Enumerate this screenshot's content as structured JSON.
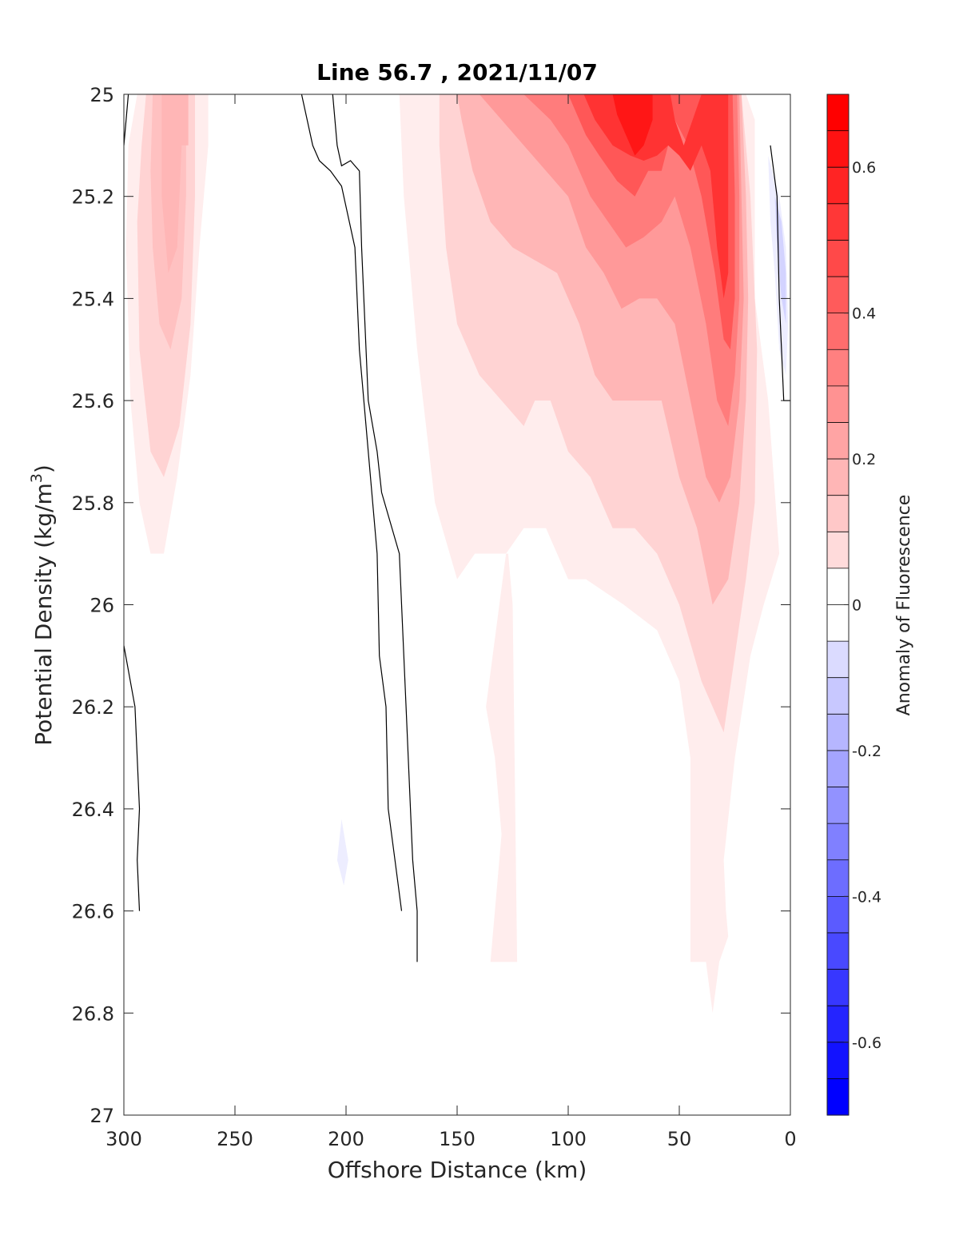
{
  "chart_data": {
    "type": "heatmap",
    "subtype": "filled-contour",
    "title": "Line 56.7 , 2021/11/07",
    "xlabel": "Offshore Distance (km)",
    "ylabel_main": "Potential Density (kg/m",
    "ylabel_sup": "3",
    "ylabel_close": ")",
    "colorbar_label": "Anomaly of Fluorescence",
    "xlim": [
      300,
      0
    ],
    "x_reversed": true,
    "ylim": [
      25,
      27
    ],
    "y_reversed": true,
    "x_ticks": [
      300,
      250,
      200,
      150,
      100,
      50,
      0
    ],
    "y_ticks": [
      "25",
      "25.2",
      "25.4",
      "25.6",
      "25.8",
      "26",
      "26.2",
      "26.4",
      "26.6",
      "26.8",
      "27"
    ],
    "y_tick_values": [
      25,
      25.2,
      25.4,
      25.6,
      25.8,
      26,
      26.2,
      26.4,
      26.6,
      26.8,
      27
    ],
    "colorbar_ticks": [
      "0.6",
      "0.4",
      "0.2",
      "0",
      "-0.2",
      "-0.4",
      "-0.6"
    ],
    "colorbar_tick_values": [
      0.6,
      0.4,
      0.2,
      0,
      -0.2,
      -0.4,
      -0.6
    ],
    "colorbar_range": [
      -0.7,
      0.7
    ],
    "colorbar_levels": 28,
    "colors": {
      "positive": "#ff0000",
      "negative": "#0000ff",
      "zero": "#ffffff"
    },
    "regions": [
      {
        "name": "offshore-positive-lobe",
        "level": 0.05,
        "points": [
          [
            294,
            25
          ],
          [
            282,
            25
          ],
          [
            270,
            25
          ],
          [
            262,
            25
          ],
          [
            262,
            25.1
          ],
          [
            266,
            25.3
          ],
          [
            270,
            25.55
          ],
          [
            276,
            25.75
          ],
          [
            282,
            25.9
          ],
          [
            288,
            25.9
          ],
          [
            293,
            25.8
          ],
          [
            297,
            25.6
          ],
          [
            299,
            25.3
          ],
          [
            298,
            25.1
          ]
        ]
      },
      {
        "name": "offshore-positive-lobe",
        "level": 0.12,
        "points": [
          [
            290,
            25
          ],
          [
            278,
            25
          ],
          [
            268,
            25
          ],
          [
            268,
            25.2
          ],
          [
            270,
            25.45
          ],
          [
            275,
            25.65
          ],
          [
            282,
            25.75
          ],
          [
            288,
            25.7
          ],
          [
            293,
            25.5
          ],
          [
            294,
            25.25
          ],
          [
            292,
            25.1
          ]
        ]
      },
      {
        "name": "offshore-positive-lobe",
        "level": 0.17,
        "points": [
          [
            287,
            25
          ],
          [
            272,
            25
          ],
          [
            272,
            25.2
          ],
          [
            274,
            25.4
          ],
          [
            279,
            25.5
          ],
          [
            284,
            25.45
          ],
          [
            287,
            25.3
          ],
          [
            288,
            25.15
          ]
        ]
      },
      {
        "name": "offshore-positive-lobe",
        "level": 0.2,
        "points": [
          [
            283,
            25
          ],
          [
            271,
            25
          ],
          [
            271,
            25.1
          ],
          [
            274,
            25.1
          ],
          [
            276,
            25.3
          ],
          [
            280,
            25.35
          ],
          [
            283,
            25.2
          ]
        ]
      },
      {
        "name": "inshore-positive",
        "level": 0.05,
        "points": [
          [
            176,
            25
          ],
          [
            150,
            25
          ],
          [
            120,
            25
          ],
          [
            80,
            25
          ],
          [
            60,
            25
          ],
          [
            40,
            25
          ],
          [
            20,
            25
          ],
          [
            16,
            25.05
          ],
          [
            16,
            25.4
          ],
          [
            10,
            25.6
          ],
          [
            5,
            25.9
          ],
          [
            12,
            26
          ],
          [
            18,
            26.1
          ],
          [
            25,
            26.3
          ],
          [
            30,
            26.5
          ],
          [
            29,
            26.6
          ],
          [
            28,
            26.65
          ],
          [
            32,
            26.7
          ],
          [
            35,
            26.8
          ],
          [
            38,
            26.7
          ],
          [
            45,
            26.7
          ],
          [
            45,
            26.3
          ],
          [
            50,
            26.15
          ],
          [
            60,
            26.05
          ],
          [
            75,
            26
          ],
          [
            92,
            25.95
          ],
          [
            100,
            25.95
          ],
          [
            110,
            25.85
          ],
          [
            120,
            25.85
          ],
          [
            128,
            25.9
          ],
          [
            137,
            26.2
          ],
          [
            133,
            26.3
          ],
          [
            130,
            26.45
          ],
          [
            135,
            26.7
          ],
          [
            123,
            26.7
          ],
          [
            125,
            26.0
          ],
          [
            127,
            25.9
          ],
          [
            142,
            25.9
          ],
          [
            150,
            25.95
          ],
          [
            160,
            25.8
          ],
          [
            168,
            25.5
          ],
          [
            174,
            25.2
          ]
        ]
      },
      {
        "name": "inshore-positive",
        "level": 0.12,
        "points": [
          [
            158,
            25
          ],
          [
            120,
            25
          ],
          [
            80,
            25
          ],
          [
            50,
            25
          ],
          [
            22,
            25
          ],
          [
            18,
            25.2
          ],
          [
            15,
            25.5
          ],
          [
            16,
            25.8
          ],
          [
            20,
            25.95
          ],
          [
            25,
            26.1
          ],
          [
            30,
            26.25
          ],
          [
            40,
            26.15
          ],
          [
            50,
            26.0
          ],
          [
            60,
            25.9
          ],
          [
            70,
            25.85
          ],
          [
            80,
            25.85
          ],
          [
            90,
            25.75
          ],
          [
            100,
            25.7
          ],
          [
            108,
            25.6
          ],
          [
            115,
            25.6
          ],
          [
            120,
            25.65
          ],
          [
            130,
            25.6
          ],
          [
            140,
            25.55
          ],
          [
            150,
            25.45
          ],
          [
            155,
            25.3
          ],
          [
            158,
            25.1
          ]
        ]
      },
      {
        "name": "inshore-positive",
        "level": 0.2,
        "points": [
          [
            150,
            25
          ],
          [
            120,
            25
          ],
          [
            80,
            25
          ],
          [
            50,
            25
          ],
          [
            22,
            25
          ],
          [
            20,
            25.2
          ],
          [
            19,
            25.4
          ],
          [
            20,
            25.6
          ],
          [
            23,
            25.8
          ],
          [
            28,
            25.95
          ],
          [
            35,
            26.0
          ],
          [
            42,
            25.85
          ],
          [
            50,
            25.75
          ],
          [
            58,
            25.6
          ],
          [
            70,
            25.6
          ],
          [
            80,
            25.6
          ],
          [
            88,
            25.55
          ],
          [
            95,
            25.45
          ],
          [
            105,
            25.35
          ],
          [
            113,
            25.33
          ],
          [
            125,
            25.3
          ],
          [
            135,
            25.25
          ],
          [
            143,
            25.15
          ],
          [
            148,
            25.05
          ]
        ]
      },
      {
        "name": "inshore-positive",
        "level": 0.28,
        "points": [
          [
            140,
            25
          ],
          [
            110,
            25
          ],
          [
            80,
            25
          ],
          [
            50,
            25
          ],
          [
            23,
            25
          ],
          [
            22,
            25.2
          ],
          [
            21,
            25.4
          ],
          [
            23,
            25.6
          ],
          [
            27,
            25.75
          ],
          [
            32,
            25.8
          ],
          [
            38,
            25.75
          ],
          [
            45,
            25.6
          ],
          [
            52,
            25.45
          ],
          [
            60,
            25.4
          ],
          [
            68,
            25.4
          ],
          [
            76,
            25.42
          ],
          [
            84,
            25.35
          ],
          [
            92,
            25.3
          ],
          [
            100,
            25.2
          ],
          [
            110,
            25.15
          ],
          [
            120,
            25.1
          ],
          [
            130,
            25.05
          ]
        ]
      },
      {
        "name": "inshore-positive",
        "level": 0.36,
        "points": [
          [
            120,
            25
          ],
          [
            95,
            25
          ],
          [
            80,
            25
          ],
          [
            55,
            25
          ],
          [
            24,
            25
          ],
          [
            23,
            25.2
          ],
          [
            23,
            25.4
          ],
          [
            25,
            25.55
          ],
          [
            28,
            25.65
          ],
          [
            33,
            25.6
          ],
          [
            38,
            25.45
          ],
          [
            45,
            25.3
          ],
          [
            52,
            25.2
          ],
          [
            58,
            25.25
          ],
          [
            66,
            25.28
          ],
          [
            74,
            25.3
          ],
          [
            82,
            25.25
          ],
          [
            90,
            25.2
          ],
          [
            100,
            25.1
          ],
          [
            108,
            25.05
          ]
        ]
      },
      {
        "name": "inshore-positive",
        "level": 0.46,
        "points": [
          [
            100,
            25
          ],
          [
            85,
            25
          ],
          [
            60,
            25
          ],
          [
            26,
            25
          ],
          [
            25,
            25.2
          ],
          [
            25,
            25.4
          ],
          [
            27,
            25.5
          ],
          [
            30,
            25.48
          ],
          [
            34,
            25.35
          ],
          [
            40,
            25.2
          ],
          [
            46,
            25.1
          ],
          [
            52,
            25.05
          ],
          [
            58,
            25.15
          ],
          [
            64,
            25.15
          ],
          [
            70,
            25.2
          ],
          [
            78,
            25.17
          ],
          [
            86,
            25.12
          ],
          [
            92,
            25.08
          ]
        ]
      },
      {
        "name": "inshore-positive",
        "level": 0.56,
        "points": [
          [
            93,
            25
          ],
          [
            75,
            25
          ],
          [
            60,
            25
          ],
          [
            54,
            25
          ],
          [
            52,
            25.05
          ],
          [
            48,
            25.1
          ],
          [
            44,
            25.05
          ],
          [
            40,
            25
          ],
          [
            28,
            25
          ],
          [
            28,
            25.2
          ],
          [
            28,
            25.35
          ],
          [
            30,
            25.4
          ],
          [
            33,
            25.3
          ],
          [
            36,
            25.15
          ],
          [
            40,
            25.1
          ],
          [
            45,
            25.15
          ],
          [
            50,
            25.12
          ],
          [
            55,
            25.1
          ],
          [
            60,
            25.12
          ],
          [
            66,
            25.13
          ],
          [
            72,
            25.12
          ],
          [
            80,
            25.1
          ],
          [
            88,
            25.05
          ]
        ]
      },
      {
        "name": "inshore-positive",
        "level": 0.64,
        "points": [
          [
            80,
            25
          ],
          [
            62,
            25
          ],
          [
            62,
            25.05
          ],
          [
            66,
            25.1
          ],
          [
            70,
            25.12
          ],
          [
            74,
            25.08
          ],
          [
            78,
            25.04
          ]
        ]
      },
      {
        "name": "coastal-negative",
        "level": -0.05,
        "points": [
          [
            10,
            25.12
          ],
          [
            5,
            25.2
          ],
          [
            2,
            25.3
          ],
          [
            1,
            25.45
          ],
          [
            2,
            25.55
          ],
          [
            5,
            25.5
          ],
          [
            7,
            25.35
          ],
          [
            9,
            25.25
          ]
        ]
      },
      {
        "name": "coastal-negative",
        "level": -0.12,
        "points": [
          [
            7,
            25.2
          ],
          [
            4,
            25.25
          ],
          [
            2,
            25.35
          ],
          [
            2,
            25.45
          ],
          [
            4,
            25.4
          ],
          [
            6,
            25.3
          ]
        ]
      },
      {
        "name": "small-negative-patch",
        "level": -0.05,
        "points": [
          [
            202,
            26.42
          ],
          [
            204,
            26.5
          ],
          [
            201,
            26.55
          ],
          [
            199,
            26.5
          ]
        ]
      }
    ],
    "zero_contours": [
      {
        "name": "zero-contour-line",
        "points": [
          [
            300,
            25.1
          ],
          [
            298,
            25
          ]
        ]
      },
      {
        "name": "zero-contour-line",
        "points": [
          [
            220,
            25
          ],
          [
            215,
            25.1
          ],
          [
            212,
            25.13
          ],
          [
            207,
            25.15
          ],
          [
            202,
            25.18
          ],
          [
            196,
            25.3
          ],
          [
            194,
            25.5
          ],
          [
            193,
            25.55
          ],
          [
            190,
            25.7
          ],
          [
            186,
            25.9
          ],
          [
            185,
            26.1
          ],
          [
            182,
            26.2
          ],
          [
            181,
            26.4
          ],
          [
            178,
            26.5
          ],
          [
            175,
            26.6
          ]
        ]
      },
      {
        "name": "zero-contour-line",
        "points": [
          [
            206,
            25
          ],
          [
            204,
            25.1
          ],
          [
            202,
            25.14
          ],
          [
            198,
            25.13
          ],
          [
            194,
            25.15
          ],
          [
            193,
            25.3
          ],
          [
            190,
            25.6
          ],
          [
            186,
            25.7
          ],
          [
            184,
            25.78
          ],
          [
            176,
            25.9
          ],
          [
            173,
            26.2
          ],
          [
            171,
            26.4
          ],
          [
            170,
            26.5
          ],
          [
            168,
            26.6
          ],
          [
            168,
            26.7
          ]
        ]
      },
      {
        "name": "zero-contour-line",
        "points": [
          [
            300,
            26.08
          ],
          [
            295,
            26.2
          ],
          [
            293,
            26.4
          ],
          [
            294,
            26.5
          ],
          [
            293,
            26.6
          ]
        ]
      },
      {
        "name": "zero-contour-line",
        "points": [
          [
            9,
            25.1
          ],
          [
            6,
            25.2
          ],
          [
            5,
            25.4
          ],
          [
            4,
            25.5
          ],
          [
            3,
            25.6
          ],
          [
            0,
            25.6
          ]
        ]
      }
    ]
  }
}
